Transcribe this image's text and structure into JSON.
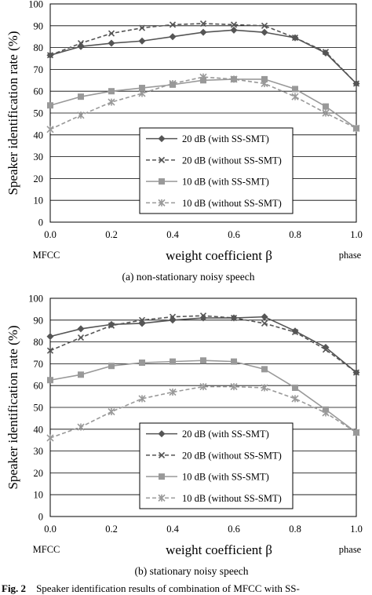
{
  "figure_caption": {
    "label": "Fig. 2",
    "text": "Speaker identification results of combination of MFCC with SS-"
  },
  "chart_data": [
    {
      "type": "line",
      "caption": "(a) non-stationary noisy speech",
      "xlabel": "weight coefficient β",
      "ylabel": "Speaker identification rate (%)",
      "x_left_label": "MFCC",
      "x_right_label": "phase",
      "xlim": [
        0,
        1
      ],
      "ylim": [
        0,
        100
      ],
      "x_ticks": [
        "0.0",
        "0.2",
        "0.4",
        "0.6",
        "0.8",
        "1.0"
      ],
      "y_ticks": [
        "0",
        "10",
        "20",
        "30",
        "40",
        "50",
        "60",
        "70",
        "80",
        "90",
        "100"
      ],
      "grid": "horizontal",
      "legend_position": "center",
      "x": [
        0.0,
        0.1,
        0.2,
        0.3,
        0.4,
        0.5,
        0.6,
        0.7,
        0.8,
        0.9,
        1.0
      ],
      "series": [
        {
          "name": "20 dB (with SS-SMT)",
          "values": [
            76.5,
            80.5,
            82,
            83,
            85,
            87,
            88,
            87,
            84.5,
            77.5,
            63.5
          ],
          "color": "#555555",
          "dash": false,
          "marker": "diamond"
        },
        {
          "name": "20 dB (without SS-SMT)",
          "values": [
            76.5,
            82,
            86.5,
            89,
            90.5,
            91,
            90.5,
            90,
            84.5,
            78,
            63.5
          ],
          "color": "#555555",
          "dash": true,
          "marker": "x"
        },
        {
          "name": "10 dB (with SS-SMT)",
          "values": [
            53.5,
            57.5,
            60,
            61.5,
            63,
            65,
            65.5,
            65.5,
            61,
            53,
            43
          ],
          "color": "#999999",
          "dash": false,
          "marker": "square"
        },
        {
          "name": "10 dB (without SS-SMT)",
          "values": [
            42.5,
            49,
            55,
            59,
            63.5,
            66.5,
            65.5,
            63.5,
            57.5,
            50,
            43
          ],
          "color": "#999999",
          "dash": true,
          "marker": "star"
        }
      ]
    },
    {
      "type": "line",
      "caption": "(b) stationary noisy speech",
      "xlabel": "weight coefficient β",
      "ylabel": "Speaker identification rate (%)",
      "x_left_label": "MFCC",
      "x_right_label": "phase",
      "xlim": [
        0,
        1
      ],
      "ylim": [
        0,
        100
      ],
      "x_ticks": [
        "0.0",
        "0.2",
        "0.4",
        "0.6",
        "0.8",
        "1.0"
      ],
      "y_ticks": [
        "0",
        "10",
        "20",
        "30",
        "40",
        "50",
        "60",
        "70",
        "80",
        "90",
        "100"
      ],
      "grid": "horizontal",
      "legend_position": "bottom-center",
      "x": [
        0.0,
        0.1,
        0.2,
        0.3,
        0.4,
        0.5,
        0.6,
        0.7,
        0.8,
        0.9,
        1.0
      ],
      "series": [
        {
          "name": "20 dB (with SS-SMT)",
          "values": [
            82.5,
            86,
            88,
            88.5,
            90,
            91,
            91,
            91.5,
            85,
            77.5,
            66
          ],
          "color": "#555555",
          "dash": false,
          "marker": "diamond"
        },
        {
          "name": "20 dB (without SS-SMT)",
          "values": [
            76,
            82,
            87.5,
            90,
            91.5,
            92,
            91,
            88.5,
            84.5,
            76.5,
            66
          ],
          "color": "#555555",
          "dash": true,
          "marker": "x"
        },
        {
          "name": "10 dB (with SS-SMT)",
          "values": [
            62.5,
            65,
            69,
            70.5,
            71,
            71.5,
            71,
            67.5,
            59,
            49,
            38.5
          ],
          "color": "#999999",
          "dash": false,
          "marker": "square"
        },
        {
          "name": "10 dB (without SS-SMT)",
          "values": [
            36,
            41,
            48,
            54,
            57,
            59.5,
            59.5,
            59,
            54,
            47.5,
            38.5
          ],
          "color": "#999999",
          "dash": true,
          "marker": "star"
        }
      ]
    }
  ]
}
